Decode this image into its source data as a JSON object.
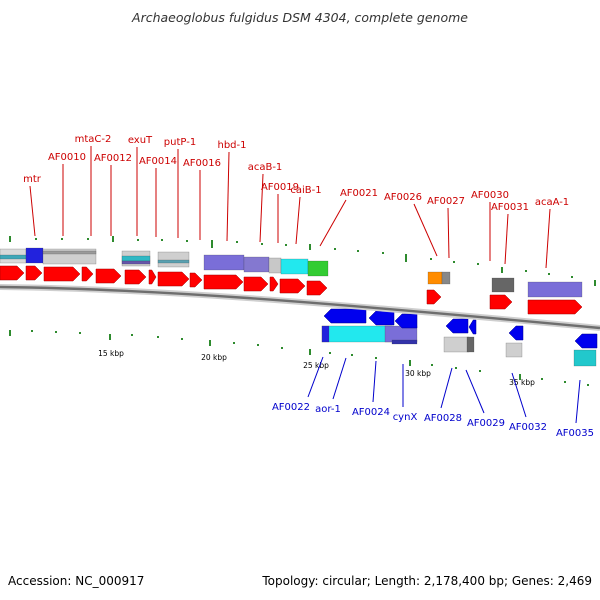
{
  "title": "Archaeoglobus fulgidus DSM 4304, complete genome",
  "footer": {
    "accession": "Accession: NC_000917",
    "topology": "Topology: circular; Length: 2,178,400 bp; Genes: 2,469"
  },
  "scale_labels": [
    "15 kbp",
    "20 kbp",
    "25 kbp",
    "30 kbp",
    "35 kbp"
  ],
  "colors": {
    "forward_label": "#cc0000",
    "reverse_label": "#0000cc",
    "forward_gene": "#ff0000",
    "reverse_gene": "#0000ee",
    "backbone": "#777777",
    "tick": "#2e8b2e"
  },
  "forward_labels": [
    "mtr",
    "AF0010",
    "mtaC-2",
    "AF0012",
    "exuT",
    "AF0014",
    "putP-1",
    "AF0016",
    "hbd-1",
    "acaB-1",
    "AF0019",
    "caiB-1",
    "AF0021",
    "AF0026",
    "AF0027",
    "AF0030",
    "AF0031",
    "acaA-1"
  ],
  "reverse_labels": [
    "AF0022",
    "aor-1",
    "AF0024",
    "cynX",
    "AF0028",
    "AF0029",
    "AF0032",
    "AF0035"
  ]
}
